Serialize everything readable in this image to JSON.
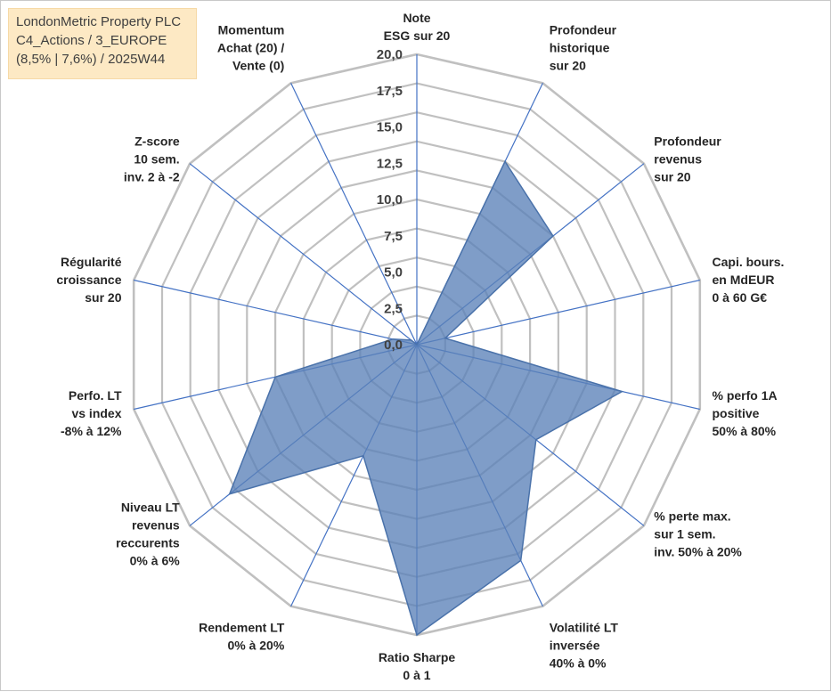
{
  "info_box": {
    "line1": "LondonMetric Property PLC",
    "line2": "C4_Actions / 3_EUROPE",
    "line3": "(8,5% | 7,6%) / 2025W44"
  },
  "chart_data": {
    "type": "radar",
    "title": "",
    "rmin": 0,
    "rmax": 20,
    "ticks": [
      "0,0",
      "2,5",
      "5,0",
      "7,5",
      "10,0",
      "12,5",
      "15,0",
      "17,5",
      "20,0"
    ],
    "tick_values": [
      0,
      2.5,
      5,
      7.5,
      10,
      12.5,
      15,
      17.5,
      20
    ],
    "ring_count": 10,
    "colors": {
      "fill": "#5b82b8",
      "stroke": "#4a72aa",
      "spoke": "#4472c4",
      "ring": "#c0c0c0"
    },
    "categories": [
      [
        "Note",
        "ESG sur 20"
      ],
      [
        "Profondeur",
        "historique",
        "sur 20"
      ],
      [
        "Profondeur",
        "revenus",
        "sur 20"
      ],
      [
        "Capi. bours.",
        "en MdEUR",
        "0 à 60 G€"
      ],
      [
        "% perfo 1A",
        "positive",
        "50% à 80%"
      ],
      [
        "% perte max.",
        "sur 1 sem.",
        "inv. 50% à 20%"
      ],
      [
        "Volatilité LT",
        "inversée",
        "40% à 0%"
      ],
      [
        "Ratio Sharpe",
        "0 à 1"
      ],
      [
        "Rendement LT",
        "0% à 20%"
      ],
      [
        "Niveau LT",
        "revenus",
        "reccurents",
        "0% à 6%"
      ],
      [
        "Perfo. LT",
        "vs index",
        "-8% à 12%"
      ],
      [
        "Régularité",
        "croissance",
        "sur 20"
      ],
      [
        "Z-score",
        "10 sem.",
        "inv. 2 à -2"
      ],
      [
        "Momentum",
        "Achat (20) /",
        "Vente (0)"
      ]
    ],
    "series": [
      {
        "name": "LondonMetric Property PLC",
        "values": [
          0,
          14,
          12,
          2,
          14.5,
          10.5,
          16.5,
          20,
          8.5,
          16.5,
          10,
          1.7,
          0.5,
          0
        ]
      }
    ]
  }
}
